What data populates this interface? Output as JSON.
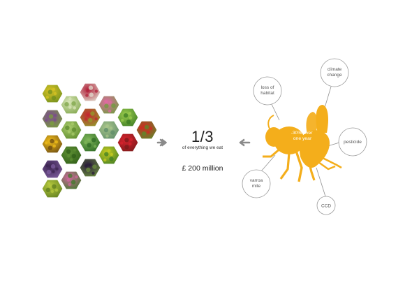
{
  "center": {
    "fraction": "1/3",
    "caption": "of everything we eat",
    "amount": "£ 200 million"
  },
  "bee": {
    "body_text": "-30% over one year",
    "color": "#F4AE1B"
  },
  "factors": [
    {
      "label": "loss of habitat"
    },
    {
      "label": "climate change"
    },
    {
      "label": "pesticide"
    },
    {
      "label": "CCD"
    },
    {
      "label": "varroa mite"
    }
  ],
  "arrows": {
    "color": "#8a8a8a"
  },
  "produce_tiles": [
    {
      "name": "rapeseed-flowers",
      "colors": [
        "#d8c323",
        "#6f8e1e"
      ]
    },
    {
      "name": "purple-flowers",
      "colors": [
        "#7b4a8f",
        "#7aa13a"
      ]
    },
    {
      "name": "sunflower",
      "colors": [
        "#f2bf1a",
        "#6b4a12"
      ]
    },
    {
      "name": "grapes",
      "colors": [
        "#3c2450",
        "#7f5fa0"
      ]
    },
    {
      "name": "pear",
      "colors": [
        "#b6c83d",
        "#5f7e1f"
      ]
    },
    {
      "name": "cucumber-slices",
      "colors": [
        "#d9e6b8",
        "#7fa54a"
      ]
    },
    {
      "name": "celery",
      "colors": [
        "#a9cb6b",
        "#5c8a2c"
      ]
    },
    {
      "name": "broccoli",
      "colors": [
        "#5e8f33",
        "#2f5e18"
      ]
    },
    {
      "name": "clover",
      "colors": [
        "#d0679f",
        "#3f7a2a"
      ]
    },
    {
      "name": "radish",
      "colors": [
        "#b2203a",
        "#e0e0d0"
      ]
    },
    {
      "name": "apples",
      "colors": [
        "#c4272f",
        "#8f9f2c"
      ]
    },
    {
      "name": "leafy-greens",
      "colors": [
        "#7fb65a",
        "#2d6a24"
      ]
    },
    {
      "name": "eggplant",
      "colors": [
        "#2a1c3a",
        "#6c8f3e"
      ]
    },
    {
      "name": "pink-flower",
      "colors": [
        "#e06aa3",
        "#6d9e3c"
      ]
    },
    {
      "name": "cabbage",
      "colors": [
        "#a9c58a",
        "#5e8c6a"
      ]
    },
    {
      "name": "yellow-flowers",
      "colors": [
        "#c8cc22",
        "#3f7d24"
      ]
    },
    {
      "name": "lettuce",
      "colors": [
        "#9ccc4e",
        "#3a7a22"
      ]
    },
    {
      "name": "strawberries",
      "colors": [
        "#d8232e",
        "#7a1a1a"
      ]
    },
    {
      "name": "tomatoes",
      "colors": [
        "#d02a22",
        "#5b8b2a"
      ]
    },
    {
      "name": "berries",
      "colors": [
        "#c8141f",
        "#3c2a2a"
      ]
    }
  ]
}
